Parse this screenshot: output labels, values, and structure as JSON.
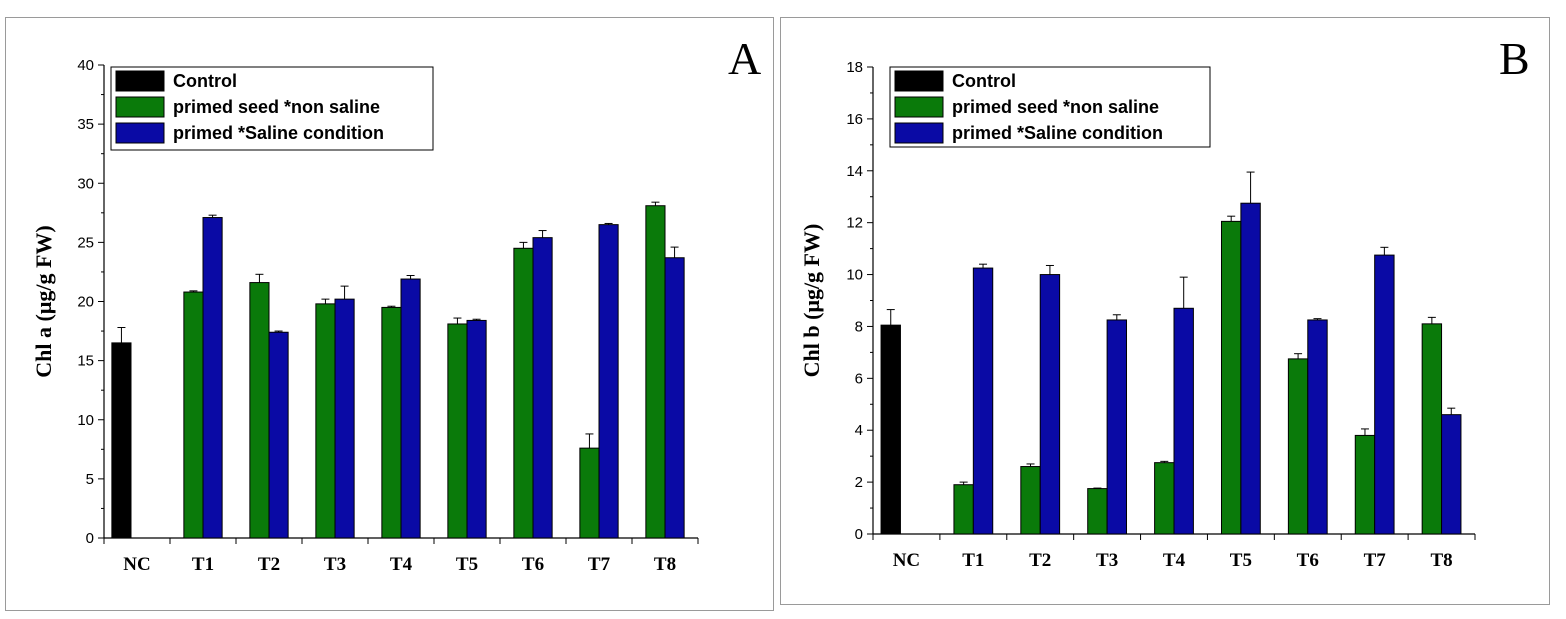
{
  "chart_data": [
    {
      "type": "bar",
      "panel_label": "A",
      "ylabel": "Chl a (μg/g FW)",
      "categories": [
        "NC",
        "T1",
        "T2",
        "T3",
        "T4",
        "T5",
        "T6",
        "T7",
        "T8"
      ],
      "ylim": [
        0,
        40
      ],
      "yticks": [
        "0",
        "5",
        "10",
        "15",
        "20",
        "25",
        "30",
        "35",
        "40"
      ],
      "legend_position": "top-left",
      "series": [
        {
          "name": "Control",
          "color": "#000000",
          "values": [
            16.5,
            null,
            null,
            null,
            null,
            null,
            null,
            null,
            null
          ],
          "errors": [
            1.3,
            null,
            null,
            null,
            null,
            null,
            null,
            null,
            null
          ]
        },
        {
          "name": "primed seed *non saline",
          "color": "#0a7a0a",
          "values": [
            null,
            20.8,
            21.6,
            19.8,
            19.5,
            18.1,
            24.5,
            7.6,
            28.1
          ],
          "errors": [
            null,
            0.1,
            0.7,
            0.4,
            0.1,
            0.5,
            0.5,
            1.2,
            0.3
          ]
        },
        {
          "name": "primed *Saline condition",
          "color": "#0a0aa5",
          "values": [
            null,
            27.1,
            17.4,
            20.2,
            21.9,
            18.4,
            25.4,
            26.5,
            23.7
          ],
          "errors": [
            null,
            0.2,
            0.1,
            1.1,
            0.3,
            0.1,
            0.6,
            0.1,
            0.9
          ]
        }
      ]
    },
    {
      "type": "bar",
      "panel_label": "B",
      "ylabel": "Chl b (μg/g FW)",
      "categories": [
        "NC",
        "T1",
        "T2",
        "T3",
        "T4",
        "T5",
        "T6",
        "T7",
        "T8"
      ],
      "ylim": [
        0,
        18
      ],
      "yticks": [
        "0",
        "2",
        "4",
        "6",
        "8",
        "10",
        "12",
        "14",
        "16",
        "18"
      ],
      "legend_position": "top-left",
      "series": [
        {
          "name": "Control",
          "color": "#000000",
          "values": [
            8.05,
            null,
            null,
            null,
            null,
            null,
            null,
            null,
            null
          ],
          "errors": [
            0.6,
            null,
            null,
            null,
            null,
            null,
            null,
            null,
            null
          ]
        },
        {
          "name": "primed seed *non saline",
          "color": "#0a7a0a",
          "values": [
            null,
            1.9,
            2.6,
            1.75,
            2.75,
            12.05,
            6.75,
            3.8,
            8.1
          ],
          "errors": [
            null,
            0.1,
            0.1,
            0.02,
            0.05,
            0.2,
            0.2,
            0.25,
            0.25
          ]
        },
        {
          "name": "primed *Saline condition",
          "color": "#0a0aa5",
          "values": [
            null,
            10.25,
            10.0,
            8.25,
            8.7,
            12.75,
            8.25,
            10.75,
            4.6
          ],
          "errors": [
            null,
            0.15,
            0.35,
            0.2,
            1.2,
            1.2,
            0.05,
            0.3,
            0.25
          ]
        }
      ]
    }
  ]
}
